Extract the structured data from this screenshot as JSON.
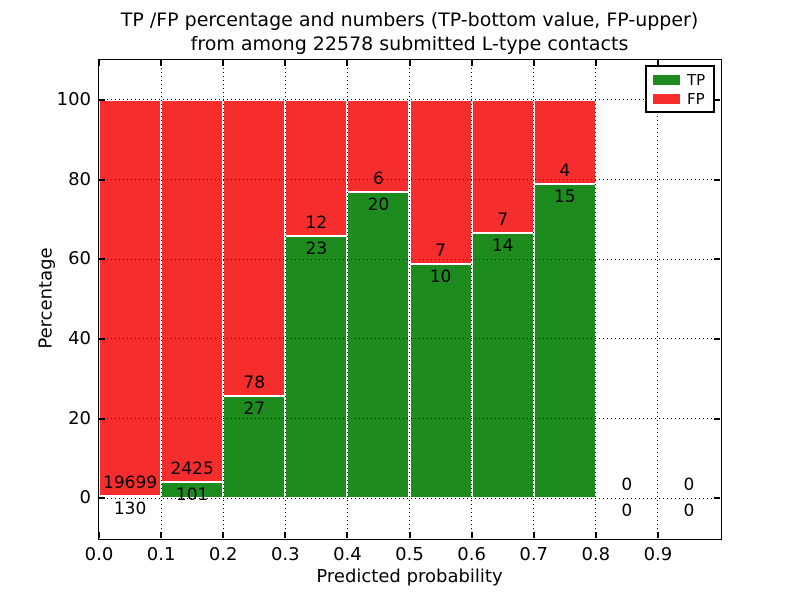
{
  "figure": {
    "title_line1": "TP /FP percentage and numbers (TP-bottom value, FP-upper)",
    "title_line2": "from among 22578 submitted L-type contacts",
    "xlabel": "Predicted probability",
    "ylabel": "Percentage"
  },
  "legend": {
    "entries": [
      {
        "label": "TP",
        "color": "#1E8B1E"
      },
      {
        "label": "FP",
        "color": "#F62D2D"
      }
    ]
  },
  "chart_data": {
    "type": "bar",
    "subtype": "stacked-percentage-histogram",
    "title": "TP /FP percentage and numbers (TP-bottom value, FP-upper) from among 22578 submitted L-type contacts",
    "xlabel": "Predicted probability",
    "ylabel": "Percentage",
    "xlim": [
      0.0,
      1.0
    ],
    "ylim": [
      -10,
      110
    ],
    "xticks": [
      "0.0",
      "0.1",
      "0.2",
      "0.3",
      "0.4",
      "0.5",
      "0.6",
      "0.7",
      "0.8",
      "0.9"
    ],
    "yticks": [
      0,
      20,
      40,
      60,
      80,
      100
    ],
    "grid": "dotted",
    "legend_position": "upper-right",
    "colors": {
      "tp": "#1E8B1E",
      "fp": "#F62D2D",
      "bar_edge": "#FFFFFF",
      "text": "#000000"
    },
    "series": [
      {
        "name": "TP"
      },
      {
        "name": "FP"
      }
    ],
    "bins": [
      {
        "x0": 0.0,
        "x1": 0.1,
        "tp": 130,
        "fp": 19699,
        "tp_pct": 0.66
      },
      {
        "x0": 0.1,
        "x1": 0.2,
        "tp": 101,
        "fp": 2425,
        "tp_pct": 4.0
      },
      {
        "x0": 0.2,
        "x1": 0.3,
        "tp": 27,
        "fp": 78,
        "tp_pct": 25.71
      },
      {
        "x0": 0.3,
        "x1": 0.4,
        "tp": 23,
        "fp": 12,
        "tp_pct": 65.71
      },
      {
        "x0": 0.4,
        "x1": 0.5,
        "tp": 20,
        "fp": 6,
        "tp_pct": 76.92
      },
      {
        "x0": 0.5,
        "x1": 0.6,
        "tp": 10,
        "fp": 7,
        "tp_pct": 58.82
      },
      {
        "x0": 0.6,
        "x1": 0.7,
        "tp": 14,
        "fp": 7,
        "tp_pct": 66.67
      },
      {
        "x0": 0.7,
        "x1": 0.8,
        "tp": 15,
        "fp": 4,
        "tp_pct": 78.95
      },
      {
        "x0": 0.8,
        "x1": 0.9,
        "tp": 0,
        "fp": 0,
        "tp_pct": null
      },
      {
        "x0": 0.9,
        "x1": 1.0,
        "tp": 0,
        "fp": 0,
        "tp_pct": null
      }
    ]
  }
}
